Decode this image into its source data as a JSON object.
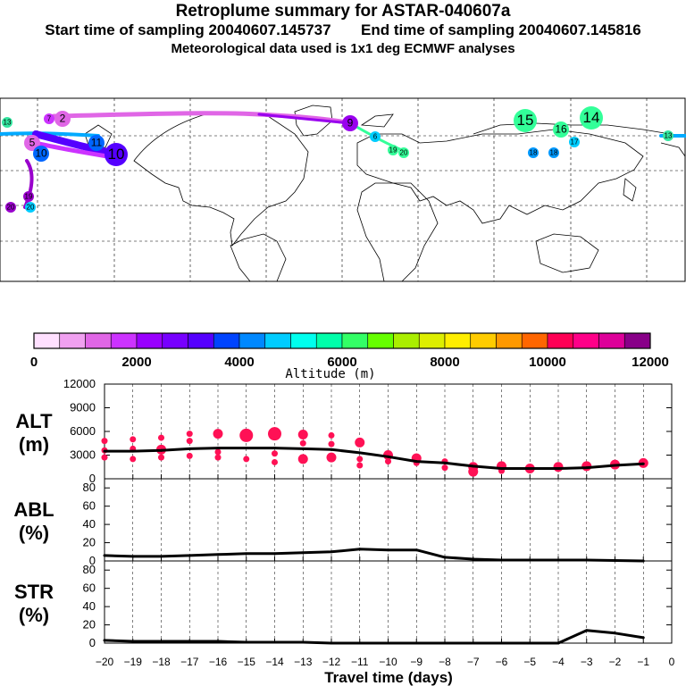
{
  "header": {
    "title": "Retroplume summary for ASTAR-040607a",
    "start_label": "Start time of sampling 20040607.145737",
    "end_label": "End time of sampling 20040607.145816",
    "met_label": "Meteorological data used is 1x1 deg ECMWF analyses"
  },
  "map": {
    "markers": [
      {
        "label": "13",
        "color": "#33e6a0",
        "size": "s"
      },
      {
        "label": "7",
        "color": "#cc33ff",
        "size": "s"
      },
      {
        "label": "2",
        "color": "#e066e6",
        "size": "m"
      },
      {
        "label": "9",
        "color": "#9900ee",
        "size": "m"
      },
      {
        "label": "15",
        "color": "#33ff99",
        "size": "l"
      },
      {
        "label": "16",
        "color": "#33ff99",
        "size": "m"
      },
      {
        "label": "14",
        "color": "#33ff99",
        "size": "l"
      },
      {
        "label": "17",
        "color": "#00ccff",
        "size": "s"
      },
      {
        "label": "18",
        "color": "#0099ff",
        "size": "s"
      },
      {
        "label": "18",
        "color": "#0099ff",
        "size": "s"
      },
      {
        "label": "19",
        "color": "#33ff99",
        "size": "s"
      },
      {
        "label": "20",
        "color": "#33ff99",
        "size": "s"
      },
      {
        "label": "13",
        "color": "#33e6a0",
        "size": "s"
      },
      {
        "label": "6",
        "color": "#00ccff",
        "size": "s"
      },
      {
        "label": "5",
        "color": "#e066e6",
        "size": "m"
      },
      {
        "label": "10",
        "color": "#5500ff",
        "size": "l"
      },
      {
        "label": "11",
        "color": "#0066ff",
        "size": "m"
      },
      {
        "label": "10",
        "color": "#0066ff",
        "size": "m"
      },
      {
        "label": "20",
        "color": "#00ccff",
        "size": "s"
      },
      {
        "label": "19",
        "color": "#9900cc",
        "size": "s"
      },
      {
        "label": "20",
        "color": "#9900cc",
        "size": "s"
      }
    ]
  },
  "colorbar": {
    "colors": [
      "#ffe0ff",
      "#f0a0f0",
      "#e066e6",
      "#cc33ff",
      "#9900ff",
      "#7700ff",
      "#5500ff",
      "#0044ff",
      "#0088ff",
      "#00ccff",
      "#00ffee",
      "#00ffaa",
      "#33ff66",
      "#66ff00",
      "#aaee00",
      "#ddee00",
      "#ffee00",
      "#ffcc00",
      "#ff9900",
      "#ff6600",
      "#ff0055",
      "#ff0088",
      "#dd0099",
      "#880088"
    ],
    "ticks": [
      "0",
      "2000",
      "4000",
      "6000",
      "8000",
      "10000",
      "12000"
    ],
    "label": "Altitude (m)"
  },
  "chart_data": [
    {
      "type": "line",
      "panel": "ALT",
      "ylabel": "ALT\n(m)",
      "ylabel_lines": [
        "ALT",
        "(m)"
      ],
      "ylim": [
        0,
        12000
      ],
      "yticks": [
        "12000",
        "9000",
        "6000",
        "3000",
        "0"
      ],
      "ytick_values": [
        12000,
        9000,
        6000,
        3000,
        0
      ],
      "x": [
        -20,
        -19,
        -18,
        -17,
        -16,
        -15,
        -14,
        -13,
        -12,
        -11,
        -10,
        -9,
        -8,
        -7,
        -6,
        -5,
        -4,
        -3,
        -2,
        -1
      ],
      "series": [
        {
          "name": "mean altitude",
          "values": [
            3500,
            3500,
            3600,
            3800,
            3900,
            3900,
            3900,
            3800,
            3700,
            3300,
            2800,
            2200,
            2000,
            1600,
            1300,
            1300,
            1300,
            1400,
            1700,
            1900
          ]
        }
      ],
      "scatter_color": "#ff1155",
      "scatter": [
        [
          -20,
          4800,
          1
        ],
        [
          -20,
          3600,
          1
        ],
        [
          -20,
          2700,
          1
        ],
        [
          -19,
          5000,
          1
        ],
        [
          -19,
          3800,
          1
        ],
        [
          -19,
          2500,
          1
        ],
        [
          -18,
          5200,
          1
        ],
        [
          -18,
          3700,
          2
        ],
        [
          -18,
          2700,
          1
        ],
        [
          -17,
          5700,
          1
        ],
        [
          -17,
          4800,
          1
        ],
        [
          -17,
          2900,
          1
        ],
        [
          -16,
          5700,
          2
        ],
        [
          -16,
          3400,
          1
        ],
        [
          -16,
          2700,
          1
        ],
        [
          -15,
          5500,
          3
        ],
        [
          -15,
          2500,
          1
        ],
        [
          -14,
          5700,
          3
        ],
        [
          -14,
          3200,
          1
        ],
        [
          -14,
          2100,
          1
        ],
        [
          -13,
          5600,
          2
        ],
        [
          -13,
          4500,
          1
        ],
        [
          -13,
          2500,
          2
        ],
        [
          -12,
          5500,
          1
        ],
        [
          -12,
          4400,
          1
        ],
        [
          -12,
          2700,
          2
        ],
        [
          -11,
          4600,
          2
        ],
        [
          -11,
          2500,
          1
        ],
        [
          -11,
          1700,
          1
        ],
        [
          -10,
          3000,
          2
        ],
        [
          -10,
          2200,
          1
        ],
        [
          -9,
          2600,
          2
        ],
        [
          -9,
          2000,
          1
        ],
        [
          -8,
          2200,
          1
        ],
        [
          -8,
          1400,
          1
        ],
        [
          -7,
          1500,
          2
        ],
        [
          -7,
          900,
          2
        ],
        [
          -6,
          1600,
          2
        ],
        [
          -6,
          1000,
          1
        ],
        [
          -5,
          1300,
          2
        ],
        [
          -4,
          1500,
          2
        ],
        [
          -3,
          1600,
          2
        ],
        [
          -2,
          1800,
          2
        ],
        [
          -1,
          2000,
          2
        ]
      ]
    },
    {
      "type": "line",
      "panel": "ABL",
      "ylabel": "ABL\n(%)",
      "ylabel_lines": [
        "ABL",
        "(%)"
      ],
      "ylim": [
        0,
        90
      ],
      "yticks": [
        "80",
        "60",
        "40",
        "20",
        "0"
      ],
      "ytick_values": [
        80,
        60,
        40,
        20,
        0
      ],
      "x": [
        -20,
        -19,
        -18,
        -17,
        -16,
        -15,
        -14,
        -13,
        -12,
        -11,
        -10,
        -9,
        -8,
        -7,
        -6,
        -5,
        -4,
        -3,
        -2,
        -1
      ],
      "series": [
        {
          "name": "ABL fraction",
          "values": [
            6,
            5,
            5,
            6,
            7,
            8,
            8,
            9,
            10,
            13,
            12,
            12,
            4,
            2,
            1,
            1,
            1,
            1,
            0.5,
            0
          ]
        }
      ]
    },
    {
      "type": "line",
      "panel": "STR",
      "ylabel": "STR\n(%)",
      "ylabel_lines": [
        "STR",
        "(%)"
      ],
      "ylim": [
        0,
        90
      ],
      "yticks": [
        "80",
        "60",
        "40",
        "20",
        "0"
      ],
      "ytick_values": [
        80,
        60,
        40,
        20,
        0
      ],
      "x": [
        -20,
        -19,
        -18,
        -17,
        -16,
        -15,
        -14,
        -13,
        -12,
        -11,
        -10,
        -9,
        -8,
        -7,
        -6,
        -5,
        -4,
        -3,
        -2,
        -1
      ],
      "series": [
        {
          "name": "stratospheric fraction",
          "values": [
            3,
            2,
            2,
            2,
            2,
            1,
            1,
            1,
            0,
            0,
            0,
            0,
            0,
            0,
            0,
            0,
            0,
            14,
            11,
            6
          ]
        }
      ]
    }
  ],
  "xaxis": {
    "ticks": [
      "−20",
      "−19",
      "−18",
      "−17",
      "−16",
      "−15",
      "−14",
      "−13",
      "−12",
      "−11",
      "−10",
      "−9",
      "−8",
      "−7",
      "−6",
      "−5",
      "−4",
      "−3",
      "−2",
      "−1",
      "0"
    ],
    "label": "Travel time (days)"
  }
}
